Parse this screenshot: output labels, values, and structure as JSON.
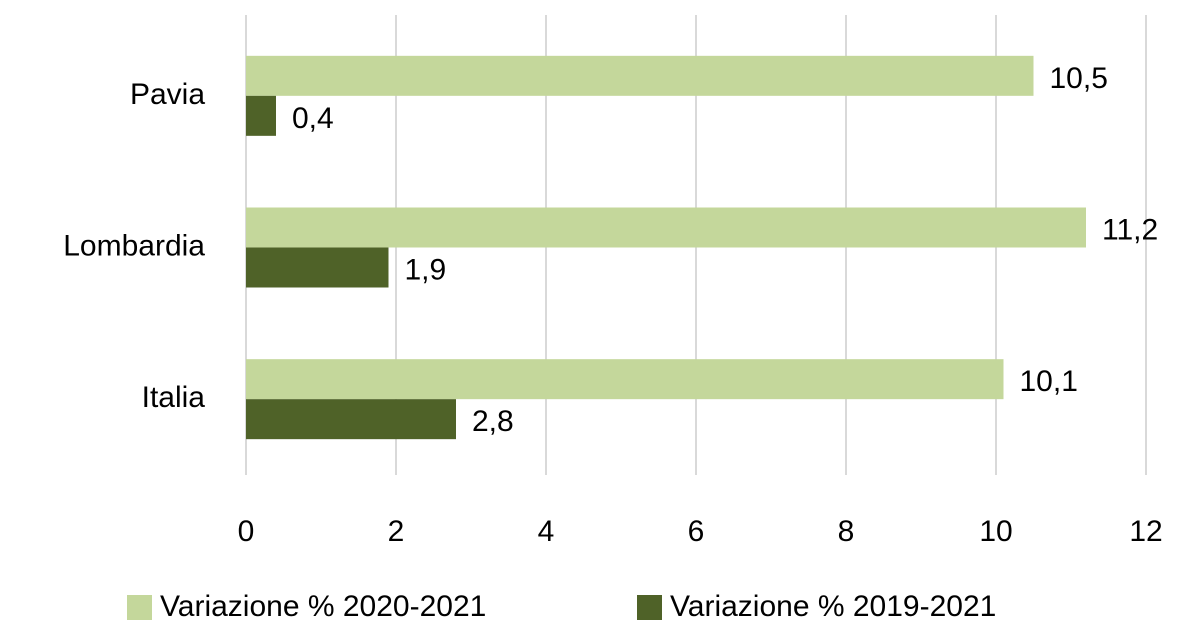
{
  "chart_data": {
    "type": "hbar",
    "categories": [
      "Pavia",
      "Lombardia",
      "Italia"
    ],
    "series": [
      {
        "name": "Variazione % 2020-2021",
        "color": "#c4d79b",
        "values": [
          10.5,
          11.2,
          10.1
        ],
        "value_labels": [
          "10,5",
          "11,2",
          "10,1"
        ]
      },
      {
        "name": "Variazione % 2019-2021",
        "color": "#4f6228",
        "values": [
          0.4,
          1.9,
          2.8
        ],
        "value_labels": [
          "0,4",
          "1,9",
          "2,8"
        ]
      }
    ],
    "xlim": [
      0,
      12
    ],
    "xticks": [
      0,
      2,
      4,
      6,
      8,
      10,
      12
    ],
    "grid": true,
    "legend": "bottom"
  }
}
